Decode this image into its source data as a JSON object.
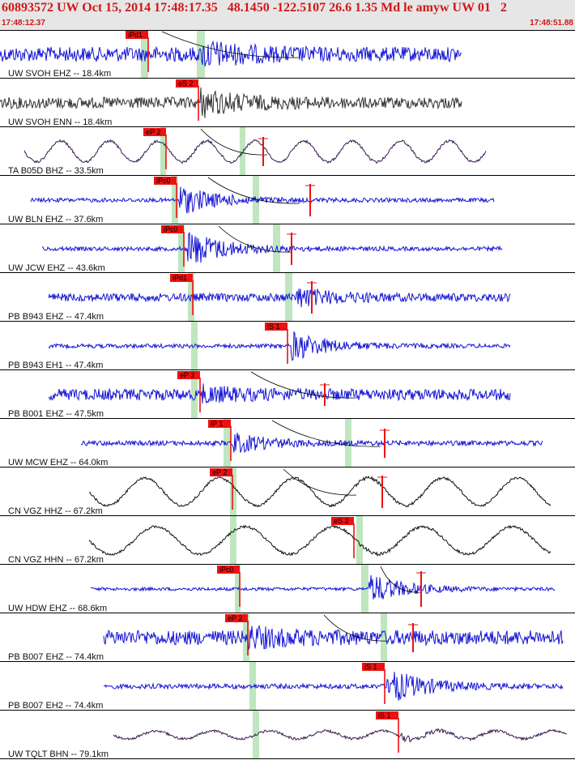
{
  "header": {
    "title": "60893572 UW Oct 15, 2014 17:48:17.35   48.1450 -122.5107 26.6 1.35 Md le amyw UW 01   2",
    "time_start": "17:48:12.37",
    "time_end": "17:48:51.88"
  },
  "colors": {
    "header_bg": "#e6e6e6",
    "header_text": "#d01818",
    "pick_fill": "#ee1111",
    "window_shade": "#bfe6bf",
    "trace_blue": "#1515d6",
    "trace_black": "#111111",
    "trace_gray": "#333333",
    "trace_purple": "#3a1a50",
    "separator": "#000000"
  },
  "traces": [
    {
      "label": "UW SVOH EHZ -- 18.4km",
      "color": "trace_blue",
      "kind": "hf",
      "xs": 0,
      "xe": 570,
      "amp": 9,
      "burst": 250,
      "bamp": 2.4,
      "shades": [
        [
          174,
          183
        ],
        [
          243,
          253
        ]
      ],
      "picks": [
        {
          "x": 183,
          "label": "iPd1"
        }
      ],
      "ticks": [],
      "curve": [
        200,
        370
      ]
    },
    {
      "label": "UW SVOH ENN -- 18.4km",
      "color": "trace_gray",
      "kind": "hf",
      "xs": 0,
      "xe": 570,
      "amp": 7,
      "burst": 248,
      "bamp": 3,
      "shades": [],
      "picks": [
        {
          "x": 245,
          "label": "eS 2"
        }
      ],
      "ticks": [],
      "curve": null
    },
    {
      "label": "TA B05D BHZ -- 33.5km",
      "color": "trace_purple",
      "kind": "lp",
      "xs": 30,
      "xe": 600,
      "amp": 13,
      "period": 60,
      "burst": 240,
      "bamp": 1.3,
      "shades": [
        [
          198,
          205
        ],
        [
          296,
          303
        ]
      ],
      "picks": [
        {
          "x": 205,
          "label": "eP 2"
        }
      ],
      "ticks": [
        {
          "x": 325,
          "dy": 18
        }
      ],
      "curve": [
        248,
        330
      ]
    },
    {
      "label": "UW BLN EHZ -- 37.6km",
      "color": "trace_blue",
      "kind": "hf",
      "xs": 38,
      "xe": 610,
      "amp": 2.5,
      "burst": 222,
      "bamp": 8,
      "shades": [
        [
          212,
          220
        ],
        [
          312,
          320
        ]
      ],
      "picks": [
        {
          "x": 218,
          "label": "iPc0"
        }
      ],
      "ticks": [
        {
          "x": 383,
          "dy": 20
        }
      ],
      "curve": [
        257,
        370
      ]
    },
    {
      "label": "UW JCW EHZ -- 43.6km",
      "color": "trace_blue",
      "kind": "hf",
      "xs": 52,
      "xe": 620,
      "amp": 2.5,
      "burst": 232,
      "bamp": 10,
      "shades": [
        [
          220,
          228
        ],
        [
          337,
          346
        ]
      ],
      "picks": [
        {
          "x": 227,
          "label": "iPc0"
        }
      ],
      "ticks": [
        {
          "x": 360,
          "dy": 20
        }
      ],
      "curve": [
        270,
        360
      ]
    },
    {
      "label": "PB B943 EHZ -- 47.4km",
      "color": "trace_blue",
      "kind": "hf",
      "xs": 60,
      "xe": 630,
      "amp": 5,
      "burst": 366,
      "bamp": 3,
      "shades": [
        [
          232,
          240
        ],
        [
          352,
          361
        ]
      ],
      "picks": [
        {
          "x": 238,
          "label": "iPd1"
        }
      ],
      "ticks": [
        {
          "x": 385,
          "dy": 20
        }
      ],
      "curve": null
    },
    {
      "label": "PB B943 EH1 -- 47.4km",
      "color": "trace_blue",
      "kind": "hf",
      "xs": 60,
      "xe": 630,
      "amp": 2.5,
      "burst": 360,
      "bamp": 8,
      "shades": [
        [
          236,
          244
        ]
      ],
      "picks": [
        {
          "x": 355,
          "label": "iS 1"
        }
      ],
      "ticks": [],
      "curve": null
    },
    {
      "label": "PB B001 EHZ -- 47.5km",
      "color": "trace_blue",
      "kind": "hf",
      "xs": 60,
      "xe": 630,
      "amp": 7,
      "burst": 250,
      "bamp": 2,
      "shades": [
        [
          236,
          244
        ]
      ],
      "picks": [
        {
          "x": 247,
          "label": "eP 2"
        }
      ],
      "ticks": [
        {
          "x": 401,
          "dy": 14
        }
      ],
      "curve": [
        310,
        440
      ]
    },
    {
      "label": "UW MCW EHZ -- 64.0km",
      "color": "trace_blue",
      "kind": "hf",
      "xs": 100,
      "xe": 670,
      "amp": 3,
      "burst": 287,
      "bamp": 5,
      "shades": [
        [
          276,
          285
        ],
        [
          426,
          434
        ]
      ],
      "picks": [
        {
          "x": 285,
          "label": "iP 1"
        }
      ],
      "ticks": [
        {
          "x": 475,
          "dy": 18
        }
      ],
      "curve": [
        336,
        470
      ]
    },
    {
      "label": "CN VGZ HHZ -- 67.2km",
      "color": "trace_black",
      "kind": "lp",
      "xs": 110,
      "xe": 680,
      "amp": 17,
      "period": 92,
      "burst": 440,
      "bamp": 1.6,
      "shades": [
        [
          284,
          292
        ]
      ],
      "picks": [
        {
          "x": 287,
          "label": "eP 2"
        }
      ],
      "ticks": [
        {
          "x": 472,
          "dy": 20
        }
      ],
      "curve": [
        350,
        440
      ]
    },
    {
      "label": "CN VGZ HHN -- 67.2km",
      "color": "trace_black",
      "kind": "lp",
      "xs": 110,
      "xe": 680,
      "amp": 17,
      "period": 110,
      "burst": 440,
      "bamp": 1.8,
      "shades": [
        [
          284,
          292
        ],
        [
          440,
          448
        ]
      ],
      "picks": [
        {
          "x": 437,
          "label": "eS 2"
        }
      ],
      "ticks": [],
      "curve": null
    },
    {
      "label": "UW HDW EHZ -- 68.6km",
      "color": "trace_blue",
      "kind": "hf",
      "xs": 112,
      "xe": 685,
      "amp": 2,
      "burst": 456,
      "bamp": 10,
      "shades": [
        [
          446,
          455
        ],
        [
          290,
          297
        ]
      ],
      "picks": [
        {
          "x": 296,
          "label": "iPc0"
        }
      ],
      "ticks": [
        {
          "x": 520,
          "dy": 22
        }
      ],
      "curve": [
        470,
        520
      ]
    },
    {
      "label": "PB B007 EHZ -- 74.4km",
      "color": "trace_blue",
      "kind": "hf",
      "xs": 128,
      "xe": 695,
      "amp": 9,
      "burst": 306,
      "bamp": 2,
      "shades": [
        [
          300,
          308
        ],
        [
          470,
          478
        ]
      ],
      "picks": [
        {
          "x": 306,
          "label": "eP 2"
        }
      ],
      "ticks": [
        {
          "x": 510,
          "dy": 18
        }
      ],
      "curve": [
        400,
        480
      ]
    },
    {
      "label": "PB B007 EH2 -- 74.4km",
      "color": "trace_blue",
      "kind": "hf",
      "xs": 128,
      "xe": 695,
      "amp": 3,
      "burst": 478,
      "bamp": 8,
      "shades": [
        [
          308,
          316
        ]
      ],
      "picks": [
        {
          "x": 475,
          "label": "iS 1"
        }
      ],
      "ticks": [],
      "curve": null
    },
    {
      "label": "UW TQLT BHN -- 79.1km",
      "color": "trace_purple",
      "kind": "lp",
      "xs": 140,
      "xe": 700,
      "amp": 5,
      "period": 70,
      "burst": 494,
      "bamp": 3,
      "shades": [
        [
          312,
          320
        ]
      ],
      "picks": [
        {
          "x": 492,
          "label": "iS 1"
        }
      ],
      "ticks": [],
      "curve": null
    }
  ]
}
